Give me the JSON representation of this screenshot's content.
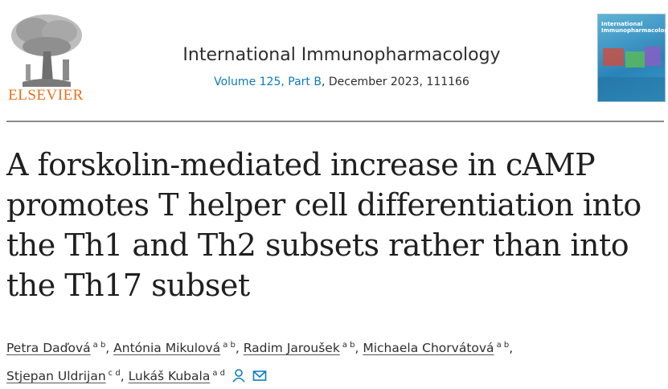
{
  "header": {
    "publisher": "ELSEVIER",
    "journal": "International Immunopharmacology",
    "volume_link": "Volume 125, Part B",
    "issue_rest": ", December 2023, 111166",
    "cover_title": "International Immunopharmacology"
  },
  "article": {
    "title": "A forskolin-mediated increase in cAMP promotes T helper cell differentiation into the Th1 and Th2 subsets rather than into the Th17 subset",
    "author_separator": ",",
    "authors": [
      {
        "name": "Petra Daďová",
        "affiliations": "a b"
      },
      {
        "name": "Antónia Mikulová",
        "affiliations": "a b"
      },
      {
        "name": "Radim Jaroušek",
        "affiliations": "a b"
      },
      {
        "name": "Michaela Chorvátová",
        "affiliations": "a b"
      },
      {
        "name": "Stjepan Uldrijan",
        "affiliations": "c d"
      },
      {
        "name": "Lukáš Kubala",
        "affiliations": "a d"
      }
    ]
  }
}
